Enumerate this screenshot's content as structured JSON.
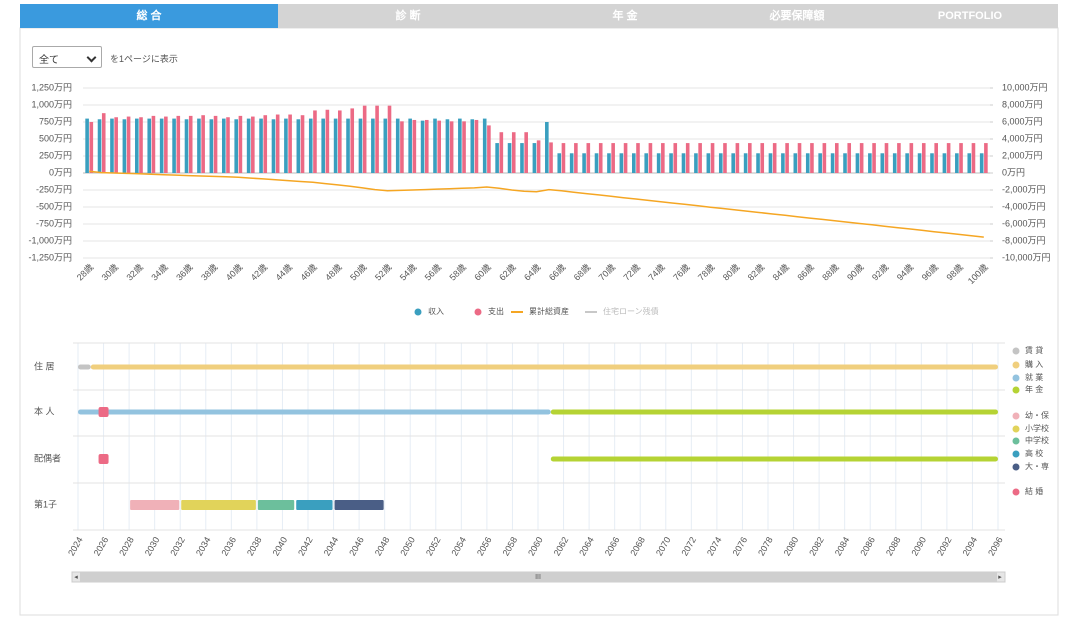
{
  "tabs": {
    "items": [
      "総 合",
      "診 断",
      "年 金",
      "必要保障額",
      "PORTFOLIO"
    ],
    "active": 0
  },
  "controls": {
    "select": "全て",
    "suffix": "を1ページに表示"
  },
  "chart_data": {
    "type": "bar",
    "categories": [
      "28歳",
      null,
      "30歳",
      null,
      "32歳",
      null,
      "34歳",
      null,
      "36歳",
      null,
      "38歳",
      null,
      "40歳",
      null,
      "42歳",
      null,
      "44歳",
      null,
      "46歳",
      null,
      "48歳",
      null,
      "50歳",
      null,
      "52歳",
      null,
      "54歳",
      null,
      "56歳",
      null,
      "58歳",
      null,
      "60歳",
      null,
      "62歳",
      null,
      "64歳",
      null,
      "66歳",
      null,
      "68歳",
      null,
      "70歳",
      null,
      "72歳",
      null,
      "74歳",
      null,
      "76歳",
      null,
      "78歳",
      null,
      "80歳",
      null,
      "82歳",
      null,
      "84歳",
      null,
      "86歳",
      null,
      "88歳",
      null,
      "90歳",
      null,
      "92歳",
      null,
      "94歳",
      null,
      "96歳",
      null,
      "98歳",
      null,
      "100歳"
    ],
    "series": [
      {
        "name": "収入",
        "type": "bar",
        "color": "#3a9fbf",
        "values": [
          800,
          790,
          800,
          790,
          800,
          800,
          800,
          800,
          790,
          800,
          790,
          800,
          790,
          800,
          800,
          790,
          800,
          790,
          800,
          800,
          800,
          800,
          800,
          800,
          800,
          800,
          800,
          770,
          800,
          790,
          800,
          790,
          800,
          440,
          440,
          440,
          440,
          750,
          290,
          290,
          290,
          290,
          290,
          290,
          290,
          290,
          290,
          290,
          290,
          290,
          290,
          290,
          290,
          290,
          290,
          290,
          290,
          290,
          290,
          290,
          290,
          290,
          290,
          290,
          290,
          290,
          290,
          290,
          290,
          290,
          290,
          290,
          290
        ]
      },
      {
        "name": "支出",
        "type": "bar",
        "color": "#ec6a85",
        "values": [
          750,
          880,
          820,
          830,
          820,
          840,
          830,
          840,
          840,
          850,
          840,
          820,
          840,
          830,
          850,
          860,
          860,
          850,
          920,
          930,
          920,
          950,
          990,
          990,
          990,
          760,
          780,
          780,
          770,
          760,
          760,
          780,
          700,
          600,
          600,
          600,
          480,
          450,
          440,
          440,
          440,
          440,
          440,
          440,
          440,
          440,
          440,
          440,
          440,
          440,
          440,
          440,
          440,
          440,
          440,
          440,
          440,
          440,
          440,
          440,
          440,
          440,
          440,
          440,
          440,
          440,
          440,
          440,
          440,
          440,
          440,
          440,
          440
        ]
      },
      {
        "name": "累計総資産",
        "type": "line",
        "axis": "y2",
        "color": "#f5a623",
        "values": [
          200,
          50,
          0,
          -50,
          -100,
          -150,
          -200,
          -250,
          -300,
          -350,
          -400,
          -450,
          -500,
          -600,
          -700,
          -800,
          -900,
          -1000,
          -1100,
          -1250,
          -1400,
          -1550,
          -1750,
          -1950,
          -2100,
          -2050,
          -2000,
          -1950,
          -1900,
          -1850,
          -1800,
          -1750,
          -1650,
          -1800,
          -2000,
          -2150,
          -2200,
          -1950,
          -2100,
          -2260,
          -2420,
          -2580,
          -2740,
          -2900,
          -3060,
          -3220,
          -3380,
          -3540,
          -3700,
          -3860,
          -4020,
          -4180,
          -4340,
          -4500,
          -4660,
          -4820,
          -4980,
          -5140,
          -5300,
          -5460,
          -5620,
          -5780,
          -5940,
          -6100,
          -6260,
          -6420,
          -6580,
          -6740,
          -6900,
          -7060,
          -7220,
          -7380,
          -7540
        ]
      },
      {
        "name": "住宅ローン残債",
        "type": "line",
        "axis": "y2",
        "color": "#c8c8c8",
        "values": [
          null,
          null,
          null,
          null,
          null,
          null,
          null,
          null,
          null,
          null,
          null,
          null,
          null,
          null,
          null,
          null,
          null,
          null,
          null,
          null,
          null,
          null,
          null,
          null,
          null,
          null,
          null,
          null,
          null,
          null,
          null,
          null,
          null,
          null,
          null,
          null,
          null,
          null,
          null,
          null,
          null,
          null,
          null,
          null,
          null,
          null,
          null,
          null,
          null,
          null,
          null,
          null,
          null,
          null,
          null,
          null,
          null,
          null,
          null,
          null,
          null,
          null,
          null,
          null,
          null,
          null,
          null,
          null,
          null,
          null,
          null,
          null,
          null
        ]
      }
    ],
    "ylim": [
      -1250,
      1250
    ],
    "yticks": [
      {
        "value": 1250,
        "label": "1,250万円"
      },
      {
        "value": 1000,
        "label": "1,000万円"
      },
      {
        "value": 750,
        "label": "750万円"
      },
      {
        "value": 500,
        "label": "500万円"
      },
      {
        "value": 250,
        "label": "250万円"
      },
      {
        "value": 0,
        "label": "0万円"
      },
      {
        "value": -250,
        "label": "-250万円"
      },
      {
        "value": -500,
        "label": "-500万円"
      },
      {
        "value": -750,
        "label": "-750万円"
      },
      {
        "value": -1000,
        "label": "-1,000万円"
      },
      {
        "value": -1250,
        "label": "-1,250万円"
      }
    ],
    "y2lim": [
      -10000,
      10000
    ],
    "y2ticks": [
      {
        "value": 10000,
        "label": "10,000万円"
      },
      {
        "value": 8000,
        "label": "8,000万円"
      },
      {
        "value": 6000,
        "label": "6,000万円"
      },
      {
        "value": 4000,
        "label": "4,000万円"
      },
      {
        "value": 2000,
        "label": "2,000万円"
      },
      {
        "value": 0,
        "label": "0万円"
      },
      {
        "value": -2000,
        "label": "-2,000万円"
      },
      {
        "value": -4000,
        "label": "-4,000万円"
      },
      {
        "value": -6000,
        "label": "-6,000万円"
      },
      {
        "value": -8000,
        "label": "-8,000万円"
      },
      {
        "value": -10000,
        "label": "-10,000万円"
      }
    ],
    "grid": true,
    "legend": "bottom"
  },
  "timeline": {
    "xlim": [
      2024,
      2096
    ],
    "xticks": [
      2024,
      2026,
      2028,
      2030,
      2032,
      2034,
      2036,
      2038,
      2040,
      2042,
      2044,
      2046,
      2048,
      2050,
      2052,
      2054,
      2056,
      2058,
      2060,
      2062,
      2064,
      2066,
      2068,
      2070,
      2072,
      2074,
      2076,
      2078,
      2080,
      2082,
      2084,
      2086,
      2088,
      2090,
      2092,
      2094,
      2096
    ],
    "legend": [
      {
        "label": "賃 貸",
        "color": "#c4c4c4"
      },
      {
        "label": "購 入",
        "color": "#f0cf7e"
      },
      {
        "label": "就 業",
        "color": "#93c3df"
      },
      {
        "label": "年 金",
        "color": "#b5d334"
      },
      {
        "label": "幼・保",
        "color": "#f0b1b8"
      },
      {
        "label": "小学校",
        "color": "#e1d35a"
      },
      {
        "label": "中学校",
        "color": "#6cbf9c"
      },
      {
        "label": "高 校",
        "color": "#3a9fbf"
      },
      {
        "label": "大・専",
        "color": "#4a5e86"
      },
      {
        "label": "結 婚",
        "color": "#ec6a85"
      }
    ],
    "rows": [
      {
        "label": "住 居",
        "segments": [
          {
            "start": 2024,
            "end": 2025,
            "color": "#c4c4c4"
          },
          {
            "start": 2025,
            "end": 2096,
            "color": "#f0cf7e"
          }
        ],
        "events": []
      },
      {
        "label": "本 人",
        "segments": [
          {
            "start": 2024,
            "end": 2061,
            "color": "#93c3df"
          },
          {
            "start": 2061,
            "end": 2096,
            "color": "#b5d334"
          }
        ],
        "events": [
          {
            "year": 2026,
            "color": "#ec6a85"
          }
        ]
      },
      {
        "label": "配偶者",
        "segments": [
          {
            "start": 2061,
            "end": 2096,
            "color": "#b5d334"
          }
        ],
        "events": [
          {
            "year": 2026,
            "color": "#ec6a85"
          }
        ]
      },
      {
        "label": "第1子",
        "segments": [
          {
            "start": 2028,
            "end": 2032,
            "color": "#f0b1b8"
          },
          {
            "start": 2032,
            "end": 2038,
            "color": "#e1d35a"
          },
          {
            "start": 2038,
            "end": 2041,
            "color": "#6cbf9c"
          },
          {
            "start": 2041,
            "end": 2044,
            "color": "#3a9fbf"
          },
          {
            "start": 2044,
            "end": 2048,
            "color": "#4a5e86"
          }
        ],
        "events": []
      }
    ]
  }
}
